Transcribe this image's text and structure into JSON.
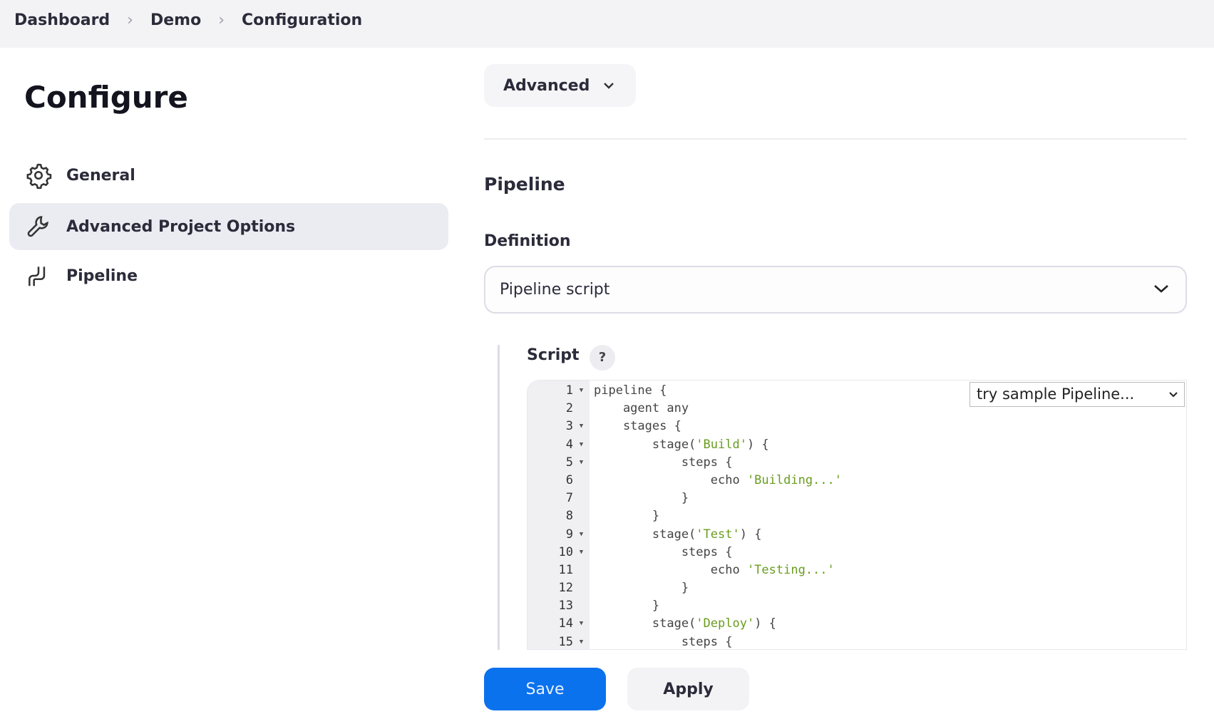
{
  "breadcrumb": [
    "Dashboard",
    "Demo",
    "Configuration"
  ],
  "page_title": "Configure",
  "sidebar": {
    "items": [
      {
        "label": "General",
        "icon": "gear-icon"
      },
      {
        "label": "Advanced Project Options",
        "icon": "wrench-icon",
        "active": true
      },
      {
        "label": "Pipeline",
        "icon": "pipeline-icon"
      }
    ]
  },
  "advanced_button": "Advanced",
  "section_title": "Pipeline",
  "definition": {
    "label": "Definition",
    "value": "Pipeline script"
  },
  "script": {
    "label": "Script",
    "help": "?",
    "sample_select": "try sample Pipeline...",
    "lines": [
      {
        "n": "1",
        "fold": true,
        "pre": "pipeline {",
        "str": "",
        "post": ""
      },
      {
        "n": "2",
        "fold": false,
        "pre": "    agent any",
        "str": "",
        "post": ""
      },
      {
        "n": "3",
        "fold": true,
        "pre": "    stages {",
        "str": "",
        "post": ""
      },
      {
        "n": "4",
        "fold": true,
        "pre": "        stage(",
        "str": "'Build'",
        "post": ") {"
      },
      {
        "n": "5",
        "fold": true,
        "pre": "            steps {",
        "str": "",
        "post": ""
      },
      {
        "n": "6",
        "fold": false,
        "pre": "                echo ",
        "str": "'Building...'",
        "post": ""
      },
      {
        "n": "7",
        "fold": false,
        "pre": "            }",
        "str": "",
        "post": ""
      },
      {
        "n": "8",
        "fold": false,
        "pre": "        }",
        "str": "",
        "post": ""
      },
      {
        "n": "9",
        "fold": true,
        "pre": "        stage(",
        "str": "'Test'",
        "post": ") {"
      },
      {
        "n": "10",
        "fold": true,
        "pre": "            steps {",
        "str": "",
        "post": ""
      },
      {
        "n": "11",
        "fold": false,
        "pre": "                echo ",
        "str": "'Testing...'",
        "post": ""
      },
      {
        "n": "12",
        "fold": false,
        "pre": "            }",
        "str": "",
        "post": ""
      },
      {
        "n": "13",
        "fold": false,
        "pre": "        }",
        "str": "",
        "post": ""
      },
      {
        "n": "14",
        "fold": true,
        "pre": "        stage(",
        "str": "'Deploy'",
        "post": ") {"
      },
      {
        "n": "15",
        "fold": true,
        "pre": "            steps {",
        "str": "",
        "post": ""
      }
    ]
  },
  "footer": {
    "save": "Save",
    "apply": "Apply"
  },
  "colors": {
    "primary": "#0b72ee",
    "string": "#6a9c1f",
    "active_bg": "#ebebf2"
  }
}
